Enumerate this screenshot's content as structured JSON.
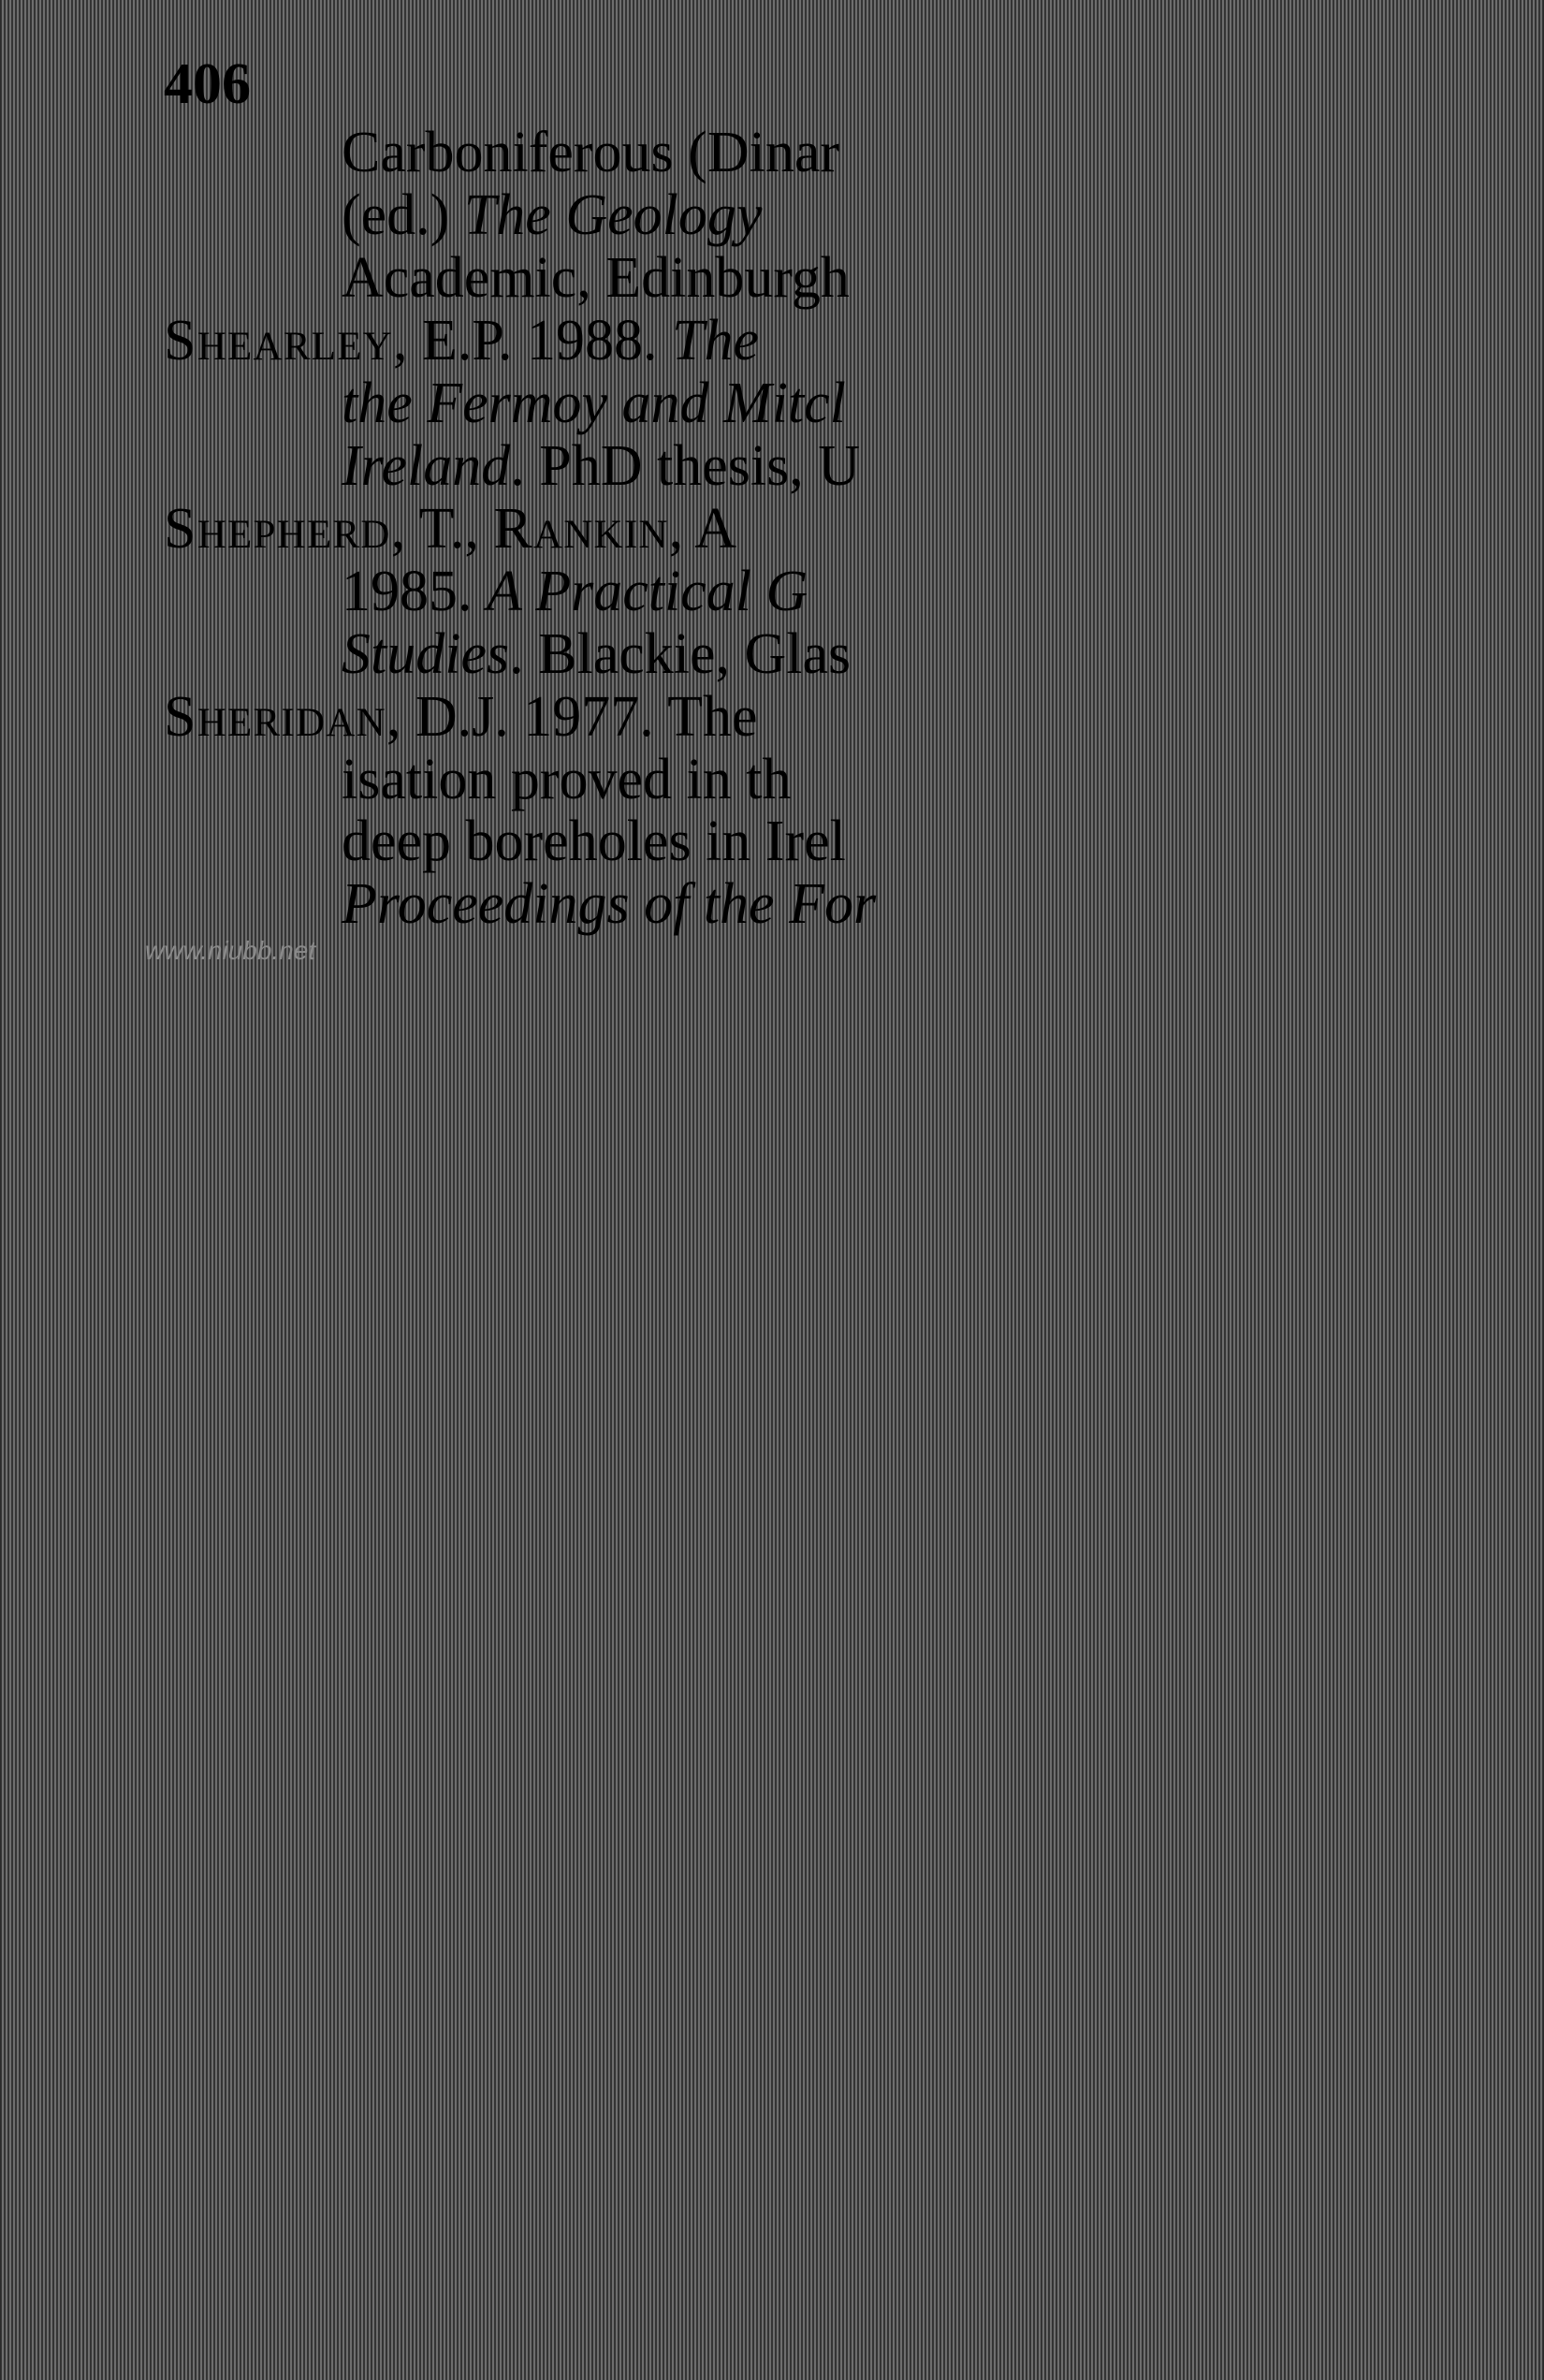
{
  "page": {
    "number": "406"
  },
  "references": {
    "entry1": {
      "line1_part1": "Carboniferous (Dinar",
      "line2_part1": "(ed.) ",
      "line2_italic": "The Geology",
      "line3": "Academic, Edinburgh"
    },
    "entry2": {
      "author": "Shearley",
      "line1_rest": ", E.P. 1988. ",
      "line1_italic": "The",
      "line2_italic": "the Fermoy and Mitcl",
      "line3_italic": "Ireland",
      "line3_rest": ". PhD thesis, U"
    },
    "entry3": {
      "author1": "Shepherd",
      "middle": ", T., ",
      "author2": "Rankin",
      "line1_rest": ", A",
      "line2_part1": "1985. ",
      "line2_italic": "A Practical G",
      "line3_italic": "Studies",
      "line3_rest": ". Blackie, Glas"
    },
    "entry4": {
      "author": "Sheridan",
      "line1_rest": ", D.J. 1977. The",
      "line2": "isation proved in th",
      "line3": "deep boreholes in Irel",
      "line4_italic": "Proceedings of the For"
    }
  },
  "watermark": {
    "text": "www.niubb.net"
  },
  "style": {
    "background_dark": "#2a2a2a",
    "background_light": "#787878",
    "text_color": "#000000",
    "watermark_color": "#8a8a8a",
    "font_size_body": 62,
    "font_size_watermark": 28,
    "font_family_body": "Times New Roman, Georgia, serif",
    "font_family_watermark": "Arial, sans-serif"
  }
}
